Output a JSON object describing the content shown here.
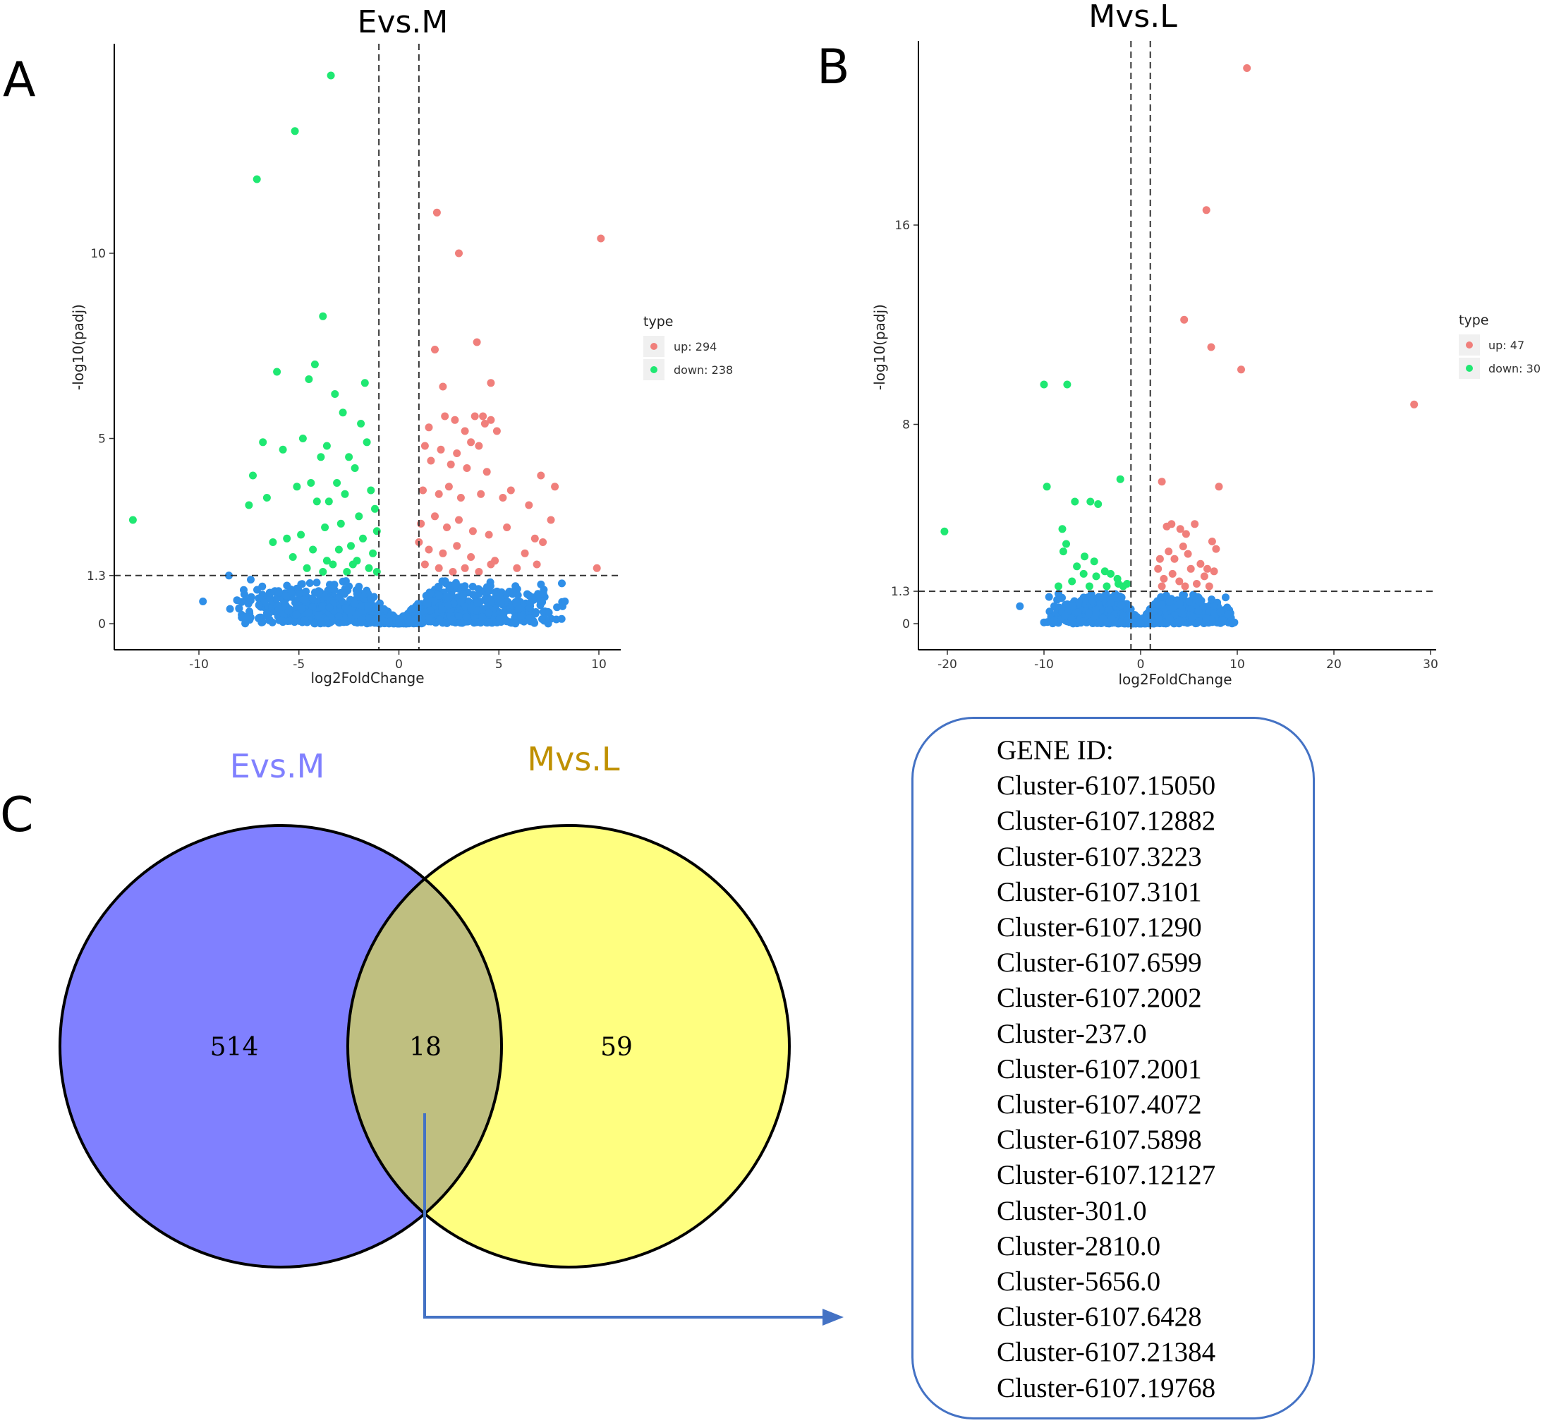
{
  "panels": {
    "a": {
      "letter": "A",
      "title": "Evs.M",
      "xlabel": "log2FoldChange",
      "ylabel": "-log10(padj)",
      "x_ticks": [
        "-10",
        "-5",
        "0",
        "5",
        "10"
      ],
      "y_ticks": [
        "0",
        "1.3",
        "5",
        "10"
      ],
      "legend_title": "type",
      "legend_up": "up: 294",
      "legend_down": "down: 238"
    },
    "b": {
      "letter": "B",
      "title": "Mvs.L",
      "xlabel": "log2FoldChange",
      "ylabel": "-log10(padj)",
      "x_ticks": [
        "-20",
        "-10",
        "0",
        "10",
        "20",
        "30"
      ],
      "y_ticks": [
        "0",
        "1.3",
        "8",
        "16"
      ],
      "legend_title": "type",
      "legend_up": "up: 47",
      "legend_down": "down: 30"
    },
    "c": {
      "letter": "C",
      "set_a_label": "Evs.M",
      "set_b_label": "Mvs.L",
      "only_a": "514",
      "both": "18",
      "only_b": "59"
    }
  },
  "gene_box": {
    "title": "GENE ID:",
    "genes": [
      "Cluster-6107.15050",
      "Cluster-6107.12882",
      "Cluster-6107.3223",
      "Cluster-6107.3101",
      "Cluster-6107.1290",
      "Cluster-6107.6599",
      "Cluster-6107.2002",
      "Cluster-237.0",
      "Cluster-6107.2001",
      "Cluster-6107.4072",
      "Cluster-6107.5898",
      "Cluster-6107.12127",
      "Cluster-301.0",
      "Cluster-2810.0",
      "Cluster-5656.0",
      "Cluster-6107.6428",
      "Cluster-6107.21384",
      "Cluster-6107.19768"
    ]
  },
  "colors": {
    "up": "#f07f7b",
    "down": "#1fe872",
    "not_sig": "#2f8fe8",
    "venn_a": "#8080ff",
    "venn_b": "#ffff80",
    "venn_overlap": "#bfbf80",
    "venn_a_label": "#8080ff",
    "venn_b_label": "#bf9000",
    "box_border": "#4472c4"
  },
  "chart_data": [
    {
      "type": "scatter",
      "title": "Evs.M",
      "xlabel": "log2FoldChange",
      "ylabel": "-log10(padj)",
      "xlim": [
        -14,
        11.2
      ],
      "ylim": [
        -0.8,
        15.5
      ],
      "x_ticks": [
        -10,
        -5,
        0,
        5,
        10
      ],
      "y_ticks": [
        0,
        1.3,
        5,
        10
      ],
      "threshold_lines": {
        "x": [
          -1,
          1
        ],
        "y": 1.3
      },
      "legend": {
        "title": "type",
        "entries": [
          "up: 294",
          "down: 238"
        ],
        "placement": "right"
      },
      "series": [
        {
          "name": "up",
          "count": 294,
          "points": [
            [
              10.1,
              10.4
            ],
            [
              1.9,
              11.1
            ],
            [
              3.0,
              10.0
            ],
            [
              3.9,
              7.6
            ],
            [
              1.8,
              7.4
            ],
            [
              4.6,
              6.5
            ],
            [
              2.2,
              6.4
            ],
            [
              1.5,
              5.3
            ],
            [
              2.3,
              5.6
            ],
            [
              2.8,
              5.5
            ],
            [
              3.8,
              5.6
            ],
            [
              4.2,
              5.6
            ],
            [
              4.6,
              5.5
            ],
            [
              3.3,
              5.2
            ],
            [
              4.3,
              5.4
            ],
            [
              4.9,
              5.2
            ],
            [
              1.3,
              4.8
            ],
            [
              2.1,
              4.7
            ],
            [
              3.6,
              4.9
            ],
            [
              4.0,
              4.8
            ],
            [
              2.9,
              4.6
            ],
            [
              1.6,
              4.4
            ],
            [
              2.6,
              4.3
            ],
            [
              3.4,
              4.2
            ],
            [
              4.4,
              4.1
            ],
            [
              7.1,
              4.0
            ],
            [
              7.8,
              3.7
            ],
            [
              1.2,
              3.6
            ],
            [
              2.0,
              3.5
            ],
            [
              2.5,
              3.7
            ],
            [
              3.1,
              3.4
            ],
            [
              4.1,
              3.5
            ],
            [
              5.2,
              3.4
            ],
            [
              5.6,
              3.6
            ],
            [
              6.5,
              3.2
            ],
            [
              7.6,
              2.8
            ],
            [
              1.1,
              2.7
            ],
            [
              1.8,
              2.9
            ],
            [
              2.4,
              2.6
            ],
            [
              3.0,
              2.8
            ],
            [
              3.7,
              2.5
            ],
            [
              4.5,
              2.4
            ],
            [
              5.4,
              2.6
            ],
            [
              6.8,
              2.3
            ],
            [
              7.2,
              2.2
            ],
            [
              1.0,
              2.2
            ],
            [
              1.5,
              2.0
            ],
            [
              2.2,
              1.9
            ],
            [
              2.9,
              2.1
            ],
            [
              3.6,
              1.8
            ],
            [
              4.8,
              1.7
            ],
            [
              6.3,
              1.9
            ],
            [
              6.9,
              1.6
            ],
            [
              9.9,
              1.5
            ],
            [
              1.3,
              1.6
            ],
            [
              2.0,
              1.5
            ],
            [
              2.7,
              1.4
            ],
            [
              3.3,
              1.5
            ],
            [
              4.0,
              1.4
            ],
            [
              4.6,
              1.6
            ],
            [
              5.9,
              1.5
            ]
          ]
        },
        {
          "name": "down",
          "count": 238,
          "points": [
            [
              -3.4,
              14.8
            ],
            [
              -5.2,
              13.3
            ],
            [
              -7.1,
              12.0
            ],
            [
              -3.8,
              8.3
            ],
            [
              -4.2,
              7.0
            ],
            [
              -6.1,
              6.8
            ],
            [
              -4.5,
              6.6
            ],
            [
              -1.7,
              6.5
            ],
            [
              -3.2,
              6.2
            ],
            [
              -2.8,
              5.7
            ],
            [
              -1.9,
              5.4
            ],
            [
              -4.8,
              5.0
            ],
            [
              -3.6,
              4.8
            ],
            [
              -1.6,
              4.9
            ],
            [
              -6.8,
              4.9
            ],
            [
              -5.8,
              4.7
            ],
            [
              -2.5,
              4.5
            ],
            [
              -3.9,
              4.5
            ],
            [
              -2.2,
              4.2
            ],
            [
              -7.3,
              4.0
            ],
            [
              -4.4,
              3.8
            ],
            [
              -3.1,
              3.8
            ],
            [
              -5.1,
              3.7
            ],
            [
              -1.4,
              3.6
            ],
            [
              -6.6,
              3.4
            ],
            [
              -7.5,
              3.2
            ],
            [
              -2.7,
              3.5
            ],
            [
              -3.5,
              3.3
            ],
            [
              -4.1,
              3.3
            ],
            [
              -1.2,
              3.1
            ],
            [
              -2.0,
              2.9
            ],
            [
              -2.9,
              2.7
            ],
            [
              -3.7,
              2.6
            ],
            [
              -4.9,
              2.4
            ],
            [
              -5.6,
              2.3
            ],
            [
              -6.3,
              2.2
            ],
            [
              -13.3,
              2.8
            ],
            [
              -1.1,
              2.5
            ],
            [
              -1.8,
              2.3
            ],
            [
              -2.4,
              2.1
            ],
            [
              -3.0,
              2.0
            ],
            [
              -4.3,
              2.0
            ],
            [
              -5.3,
              1.8
            ],
            [
              -1.3,
              1.9
            ],
            [
              -2.1,
              1.7
            ],
            [
              -3.3,
              1.6
            ],
            [
              -4.6,
              1.5
            ],
            [
              -1.5,
              1.5
            ],
            [
              -2.6,
              1.4
            ],
            [
              -3.8,
              1.4
            ],
            [
              -1.1,
              1.4
            ],
            [
              -2.3,
              1.6
            ],
            [
              -3.6,
              1.7
            ]
          ]
        },
        {
          "name": "not_sig",
          "count": null,
          "points": [
            [
              -9.8,
              0.6
            ],
            [
              -8.5,
              1.3
            ],
            [
              -7.0,
              0.5
            ],
            [
              -6.0,
              0.4
            ],
            [
              -4.5,
              0.3
            ],
            [
              -3.0,
              0.2
            ],
            [
              -1.5,
              0.15
            ],
            [
              0,
              0
            ],
            [
              1.5,
              0.15
            ],
            [
              3.0,
              0.2
            ],
            [
              4.5,
              0.3
            ],
            [
              6.0,
              0.4
            ],
            [
              7.5,
              0.3
            ],
            [
              8.3,
              0.6
            ],
            [
              -2.0,
              1.0
            ],
            [
              2.0,
              1.0
            ],
            [
              -4.0,
              0.8
            ],
            [
              4.0,
              0.8
            ]
          ]
        }
      ]
    },
    {
      "type": "scatter",
      "title": "Mvs.L",
      "xlabel": "log2FoldChange",
      "ylabel": "-log10(padj)",
      "xlim": [
        -22,
        30.5
      ],
      "ylim": [
        -1,
        23
      ],
      "x_ticks": [
        -20,
        -10,
        0,
        10,
        20,
        30
      ],
      "y_ticks": [
        0,
        1.3,
        8,
        16
      ],
      "threshold_lines": {
        "x": [
          -1,
          1
        ],
        "y": 1.3
      },
      "legend": {
        "title": "type",
        "entries": [
          "up: 47",
          "down: 30"
        ],
        "placement": "right"
      },
      "series": [
        {
          "name": "up",
          "count": 47,
          "points": [
            [
              11.0,
              22.3
            ],
            [
              6.8,
              16.6
            ],
            [
              4.5,
              12.2
            ],
            [
              7.3,
              11.1
            ],
            [
              10.4,
              10.2
            ],
            [
              28.3,
              8.8
            ],
            [
              2.2,
              5.7
            ],
            [
              8.1,
              5.5
            ],
            [
              2.7,
              3.9
            ],
            [
              3.2,
              4.0
            ],
            [
              4.1,
              3.8
            ],
            [
              4.7,
              3.6
            ],
            [
              5.6,
              4.0
            ],
            [
              7.8,
              3.0
            ],
            [
              7.4,
              3.3
            ],
            [
              2.0,
              2.6
            ],
            [
              2.9,
              2.9
            ],
            [
              3.5,
              2.6
            ],
            [
              4.4,
              3.1
            ],
            [
              4.9,
              2.8
            ],
            [
              6.2,
              2.4
            ],
            [
              6.9,
              2.2
            ],
            [
              7.6,
              2.1
            ],
            [
              1.8,
              2.2
            ],
            [
              2.4,
              1.8
            ],
            [
              3.3,
              2.0
            ],
            [
              4.0,
              1.7
            ],
            [
              5.2,
              2.2
            ],
            [
              5.8,
              1.6
            ],
            [
              6.6,
              1.9
            ],
            [
              7.1,
              1.5
            ],
            [
              4.6,
              1.5
            ],
            [
              2.2,
              1.5
            ]
          ]
        },
        {
          "name": "down",
          "count": 30,
          "points": [
            [
              -10.0,
              9.6
            ],
            [
              -7.6,
              9.6
            ],
            [
              -9.7,
              5.5
            ],
            [
              -2.1,
              5.8
            ],
            [
              -20.3,
              3.7
            ],
            [
              -6.8,
              4.9
            ],
            [
              -5.2,
              4.9
            ],
            [
              -4.4,
              4.8
            ],
            [
              -8.1,
              3.8
            ],
            [
              -7.7,
              3.2
            ],
            [
              -8.0,
              2.9
            ],
            [
              -5.8,
              2.7
            ],
            [
              -4.8,
              2.5
            ],
            [
              -6.6,
              2.3
            ],
            [
              -5.9,
              2.0
            ],
            [
              -4.6,
              1.9
            ],
            [
              -3.7,
              2.1
            ],
            [
              -3.1,
              2.0
            ],
            [
              -2.4,
              1.8
            ],
            [
              -7.1,
              1.7
            ],
            [
              -2.3,
              1.6
            ],
            [
              -5.3,
              1.5
            ],
            [
              -1.4,
              1.6
            ],
            [
              -8.5,
              1.5
            ],
            [
              -3.5,
              1.5
            ],
            [
              -1.8,
              1.5
            ]
          ]
        },
        {
          "name": "not_sig",
          "count": null,
          "points": [
            [
              -12.5,
              0.7
            ],
            [
              -10.0,
              0.05
            ],
            [
              -8.5,
              1.2
            ],
            [
              -6.0,
              0.1
            ],
            [
              -3.0,
              0.2
            ],
            [
              0,
              0
            ],
            [
              3.0,
              0.2
            ],
            [
              6.0,
              0.1
            ],
            [
              9.7,
              0.05
            ],
            [
              -5.0,
              0.9
            ],
            [
              5.0,
              0.9
            ]
          ]
        }
      ]
    },
    {
      "type": "venn",
      "sets": [
        "Evs.M",
        "Mvs.L"
      ],
      "only_a": 514,
      "intersection": 18,
      "only_b": 59
    }
  ]
}
